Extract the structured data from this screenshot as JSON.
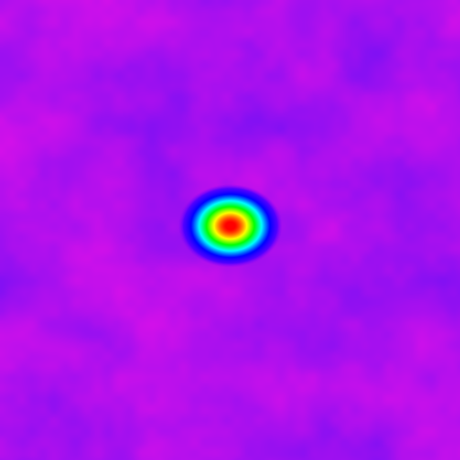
{
  "chart_data": {
    "type": "heatmap",
    "title": "",
    "xlabel": "",
    "ylabel": "",
    "grid": false,
    "legend": "none",
    "colormap": [
      "#7a00ff",
      "#0000ff",
      "#00ffff",
      "#00ff00",
      "#ffff00",
      "#ff0000"
    ],
    "background_range_colors": [
      "#7a10f4",
      "#c010f0",
      "#e010e8"
    ],
    "value_range": [
      0,
      1
    ],
    "peak": {
      "x": 0.5,
      "y": 0.49,
      "value": 1.0
    },
    "background_level": [
      0.0,
      0.12
    ],
    "grid_size": [
      32,
      32
    ],
    "values_note": ""
  }
}
